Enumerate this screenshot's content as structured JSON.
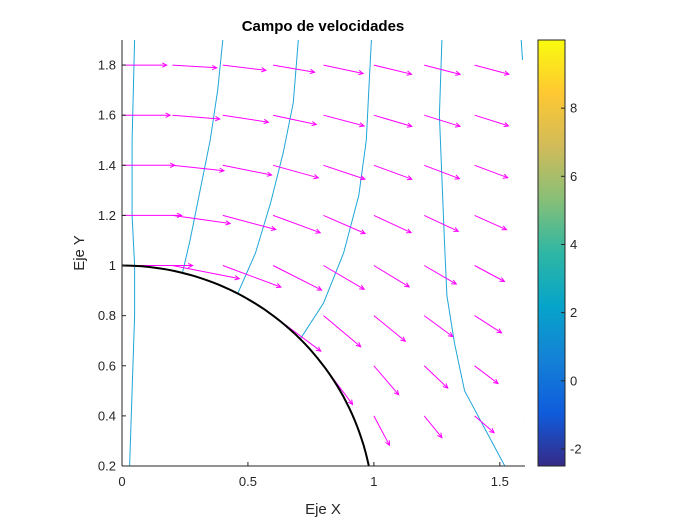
{
  "chart_data": {
    "type": "quiver-contour",
    "title": "Campo de velocidades",
    "xlabel": "Eje X",
    "ylabel": "Eje Y",
    "xlim": [
      0,
      1.6
    ],
    "ylim": [
      0.2,
      1.9
    ],
    "xticks": [
      0,
      0.5,
      1,
      1.5
    ],
    "xtick_labels": [
      "0",
      "0.5",
      "1",
      "1.5"
    ],
    "yticks": [
      0.2,
      0.4,
      0.6,
      0.8,
      1,
      1.2,
      1.4,
      1.6,
      1.8
    ],
    "ytick_labels": [
      "0.2",
      "0.4",
      "0.6",
      "0.8",
      "1",
      "1.2",
      "1.4",
      "1.6",
      "1.8"
    ],
    "grid": false,
    "arrow_color": "#ff00ff",
    "contour_color": "#1fa6d8",
    "boundary": {
      "shape": "quarter-circle",
      "radius": 1,
      "color": "#000000"
    },
    "contour_lines": [
      [
        [
          0.03,
          0.2
        ],
        [
          0.04,
          0.5
        ],
        [
          0.05,
          0.8
        ],
        [
          0.05,
          1.0
        ],
        [
          0.04,
          1.2
        ],
        [
          0.04,
          1.5
        ],
        [
          0.05,
          1.9
        ]
      ],
      [
        [
          0.24,
          0.97
        ],
        [
          0.27,
          1.1
        ],
        [
          0.31,
          1.3
        ],
        [
          0.35,
          1.5
        ],
        [
          0.38,
          1.7
        ],
        [
          0.4,
          1.9
        ]
      ],
      [
        [
          0.46,
          0.89
        ],
        [
          0.53,
          1.05
        ],
        [
          0.59,
          1.25
        ],
        [
          0.64,
          1.45
        ],
        [
          0.68,
          1.65
        ],
        [
          0.7,
          1.9
        ]
      ],
      [
        [
          0.71,
          0.71
        ],
        [
          0.8,
          0.85
        ],
        [
          0.88,
          1.05
        ],
        [
          0.94,
          1.28
        ],
        [
          0.97,
          1.5
        ],
        [
          0.98,
          1.7
        ],
        [
          0.99,
          1.9
        ]
      ],
      [
        [
          1.27,
          1.9
        ],
        [
          1.26,
          1.6
        ],
        [
          1.27,
          1.35
        ],
        [
          1.28,
          1.1
        ],
        [
          1.29,
          0.88
        ],
        [
          1.32,
          0.69
        ],
        [
          1.36,
          0.5
        ],
        [
          1.44,
          0.35
        ],
        [
          1.52,
          0.2
        ]
      ],
      [
        [
          1.59,
          1.82
        ],
        [
          1.585,
          1.9
        ]
      ]
    ],
    "vector_grid": {
      "x": [
        0,
        0.2,
        0.4,
        0.6,
        0.8,
        1.0,
        1.2,
        1.4,
        1.6
      ],
      "y": [
        0.2,
        0.4,
        0.6,
        0.8,
        1.0,
        1.2,
        1.4,
        1.6,
        1.8
      ]
    },
    "colorbar": {
      "range": [
        -2.5,
        10
      ],
      "ticks": [
        -2,
        0,
        2,
        4,
        6,
        8
      ],
      "tick_labels": [
        "-2",
        "0",
        "2",
        "4",
        "6",
        "8"
      ],
      "colormap": "parula",
      "colors": [
        "#352a87",
        "#0f5cdd",
        "#1481d6",
        "#06a4ca",
        "#2eb7a4",
        "#87bf77",
        "#d1bb59",
        "#fec832",
        "#f9fb0e"
      ]
    }
  }
}
